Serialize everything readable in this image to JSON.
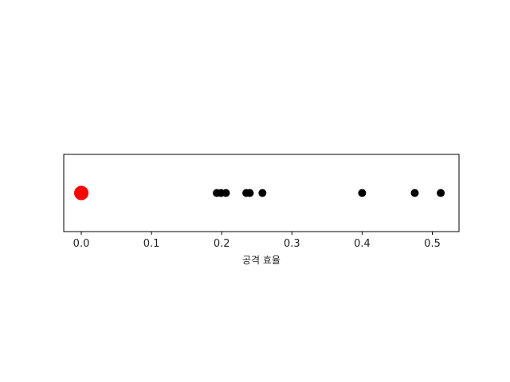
{
  "chart_data": {
    "type": "scatter",
    "xlabel": "공격 효율",
    "ylabel": "",
    "xlim": [
      -0.025,
      0.538
    ],
    "x_ticks": [
      "0.0",
      "0.1",
      "0.2",
      "0.3",
      "0.4",
      "0.5"
    ],
    "grid": false,
    "series": [
      {
        "color": "#ff0000",
        "marker_size": "large",
        "x": [
          0.0
        ]
      },
      {
        "color": "#000000",
        "marker_size": "small",
        "x": [
          0.193,
          0.199,
          0.206,
          0.235,
          0.24,
          0.258,
          0.4,
          0.475,
          0.512
        ]
      }
    ]
  }
}
